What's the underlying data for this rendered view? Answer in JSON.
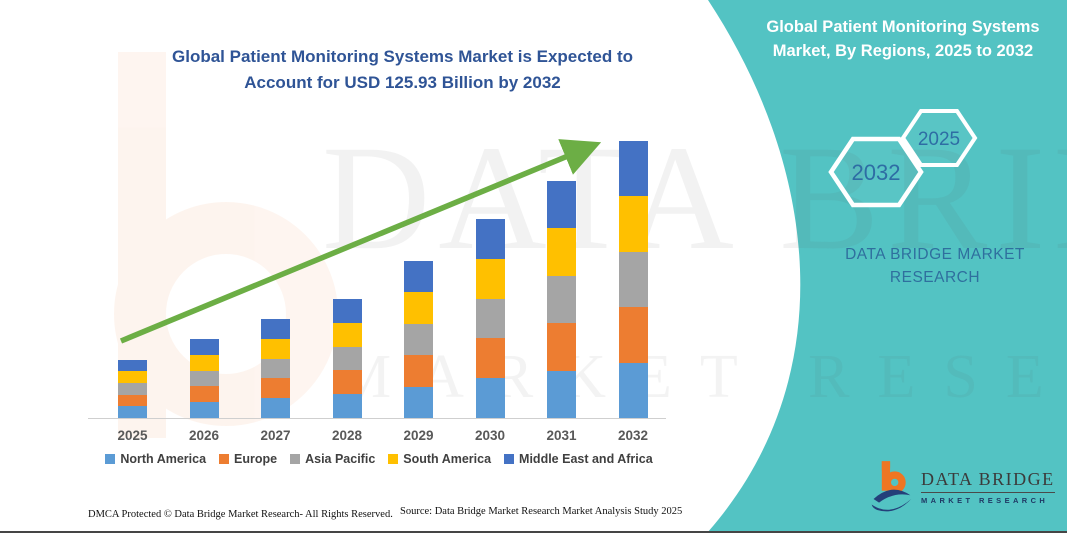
{
  "header": {
    "title_line1": "Global Patient Monitoring Systems Market is Expected to",
    "title_line2": "Account for USD 125.93 Billion by 2032"
  },
  "side_panel": {
    "title": "Global Patient Monitoring Systems Market, By Regions, 2025 to 2032",
    "hexagons": [
      {
        "label": "2032"
      },
      {
        "label": "2025"
      }
    ],
    "brand_text": "DATA BRIDGE MARKET RESEARCH"
  },
  "logo": {
    "name": "DATA BRIDGE",
    "subtitle": "MARKET RESEARCH"
  },
  "watermark": {
    "line1": "DATA BRIDGE",
    "line2": "MARKET RESEARCH"
  },
  "footer": {
    "dmca": "DMCA Protected © Data Bridge Market Research-  All Rights Reserved.",
    "source": "Source: Data Bridge Market Research  Market Analysis Study 2025"
  },
  "chart_data": {
    "type": "bar",
    "stacked": true,
    "title": "Global Patient Monitoring Systems Market is Expected to Account for USD 125.93 Billion by 2032",
    "unit": "USD Billion",
    "categories": [
      "2025",
      "2026",
      "2027",
      "2028",
      "2029",
      "2030",
      "2031",
      "2032"
    ],
    "series": [
      {
        "name": "North America",
        "color": "#5B9BD5",
        "values": [
          5.3,
          7.2,
          9.0,
          10.8,
          14.3,
          18.1,
          21.6,
          25.2
        ]
      },
      {
        "name": "Europe",
        "color": "#ED7D31",
        "values": [
          5.3,
          7.2,
          9.0,
          10.8,
          14.3,
          18.1,
          21.6,
          25.2
        ]
      },
      {
        "name": "Asia Pacific",
        "color": "#A5A5A5",
        "values": [
          5.3,
          7.2,
          9.0,
          10.8,
          14.3,
          18.1,
          21.6,
          25.2
        ]
      },
      {
        "name": "South America",
        "color": "#FFC000",
        "values": [
          5.3,
          7.2,
          9.0,
          10.8,
          14.3,
          18.1,
          21.6,
          25.2
        ]
      },
      {
        "name": "Middle East and Africa",
        "color": "#4472C4",
        "values": [
          5.3,
          7.2,
          9.0,
          10.8,
          14.3,
          18.1,
          21.6,
          25.2
        ]
      }
    ],
    "totals_usd_billion_estimated": [
      26.7,
      35.8,
      45.1,
      54.2,
      71.7,
      90.3,
      108.1,
      125.93
    ],
    "final_value_label": "USD 125.93 Billion by 2032",
    "y_axis_visible": false,
    "grid": false,
    "legend_position": "bottom",
    "trend_arrow": true,
    "ylim": [
      0,
      130
    ]
  },
  "colors": {
    "teal_panel": "#53C3C3",
    "arrow_green": "#6CAE45",
    "title_blue": "#2F5496",
    "hexagon_year_blue": "#2E6DA4",
    "axis_label_gray": "#595959",
    "legend_text": "#404040",
    "logo_orange": "#EE7623",
    "logo_navy": "#24407A"
  }
}
